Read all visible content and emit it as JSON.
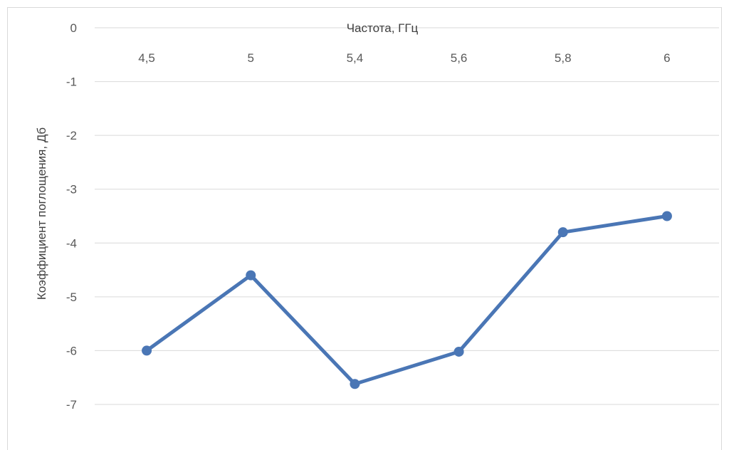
{
  "chart_data": {
    "type": "line",
    "categories": [
      "4,5",
      "5",
      "5,4",
      "5,6",
      "5,8",
      "6"
    ],
    "series": [
      {
        "values": [
          -6.0,
          -4.6,
          -6.62,
          -6.02,
          -3.8,
          -3.5
        ]
      }
    ],
    "xlabel": "Частота, ГГц",
    "ylabel": "Коэффициент поглощения, Дб",
    "ylim": [
      -7,
      0
    ],
    "yticks": [
      "0",
      "-1",
      "-2",
      "-3",
      "-4",
      "-5",
      "-6",
      "-7"
    ],
    "x_axis_position": "top",
    "grid": true,
    "line_color": "#4a76b5",
    "gridline_color": "#d9d9d9"
  }
}
